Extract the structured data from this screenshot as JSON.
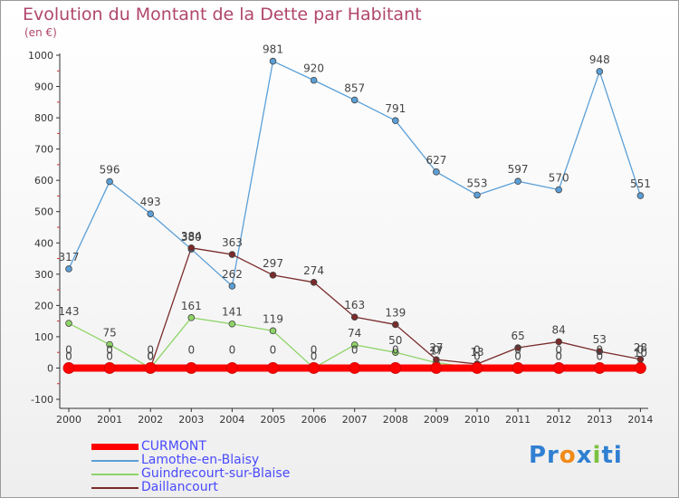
{
  "header": {
    "title": "Evolution du Montant de la Dette par Habitant",
    "unit": "(en €)"
  },
  "brand": {
    "logo_parts": [
      "Pr",
      "o",
      "x",
      "i",
      "ti"
    ],
    "logo_colors": [
      "#2f7fd2",
      "#f08a18",
      "#2f7fd2",
      "#7cc242",
      "#2f7fd2"
    ]
  },
  "chart_data": {
    "type": "line",
    "title": "Evolution du Montant de la Dette par Habitant",
    "ylabel": "(en €)",
    "xlabel": "",
    "x": [
      "2000",
      "2001",
      "2002",
      "2003",
      "2004",
      "2005",
      "2006",
      "2007",
      "2008",
      "2009",
      "2010",
      "2011",
      "2012",
      "2013",
      "2014"
    ],
    "ylim": [
      -100,
      1000
    ],
    "yticks": [
      "-100",
      "0",
      "100",
      "200",
      "300",
      "400",
      "500",
      "600",
      "700",
      "800",
      "900",
      "1000"
    ],
    "grid": false,
    "legend_position": "bottom-left",
    "series": [
      {
        "name": "CURMONT",
        "color": "#ff0000",
        "values": [
          0,
          0,
          0,
          0,
          0,
          0,
          0,
          0,
          0,
          0,
          0,
          0,
          0,
          0,
          0
        ],
        "labels": [
          "0",
          "0",
          "0",
          "0",
          "0",
          "0",
          "0",
          "0",
          "0",
          "0",
          "0",
          "0",
          "0",
          "0",
          "0"
        ]
      },
      {
        "name": "Lamothe-en-Blaisy",
        "color": "#5b9fd6",
        "values": [
          317,
          596,
          493,
          380,
          262,
          981,
          920,
          857,
          791,
          627,
          553,
          597,
          570,
          948,
          551
        ],
        "labels": [
          "317",
          "596",
          "493",
          "380",
          "262",
          "981",
          "920",
          "857",
          "791",
          "627",
          "553",
          "597",
          "570",
          "948",
          "551"
        ]
      },
      {
        "name": "Guindrecourt-sur-Blaise",
        "color": "#8fd468",
        "values": [
          143,
          75,
          0,
          161,
          141,
          119,
          0,
          74,
          50,
          17,
          0,
          0,
          0,
          0,
          10
        ],
        "labels": [
          "143",
          "75",
          "0",
          "161",
          "141",
          "119",
          "0",
          "74",
          "50",
          "17",
          "0",
          "0",
          "0",
          "0",
          "10"
        ]
      },
      {
        "name": "Daillancourt",
        "color": "#7a2b2b",
        "values": [
          0,
          0,
          0,
          384,
          363,
          297,
          274,
          163,
          139,
          27,
          13,
          65,
          84,
          53,
          28
        ],
        "labels": [
          "0",
          "0",
          "0",
          "384",
          "363",
          "297",
          "274",
          "163",
          "139",
          "27",
          "13",
          "65",
          "84",
          "53",
          "28"
        ]
      }
    ]
  }
}
